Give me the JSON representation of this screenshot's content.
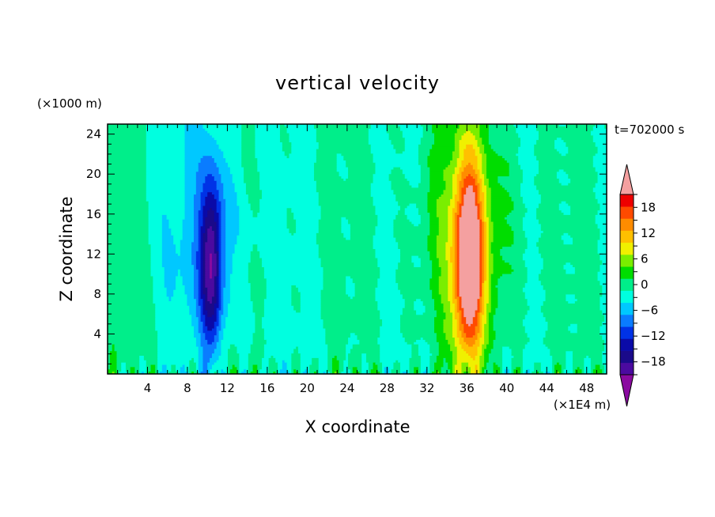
{
  "chart_data": {
    "type": "heatmap",
    "title": "vertical velocity",
    "xlabel": "X coordinate",
    "ylabel": "Z coordinate",
    "x_units": "(×1E4 m)",
    "y_units": "(×1000 m)",
    "time_label": "t=702000 s",
    "xlim": [
      0,
      50
    ],
    "ylim": [
      0,
      25
    ],
    "x_ticks": [
      4,
      8,
      12,
      16,
      20,
      24,
      28,
      32,
      36,
      40,
      44,
      48
    ],
    "y_ticks": [
      4,
      8,
      12,
      16,
      20,
      24
    ],
    "x_tick_labels": [
      "4",
      "8",
      "12",
      "16",
      "20",
      "24",
      "28",
      "32",
      "36",
      "40",
      "44",
      "48"
    ],
    "y_tick_labels": [
      "4",
      "8",
      "12",
      "16",
      "20",
      "24"
    ],
    "colorbar": {
      "levels": [
        -21,
        -18,
        -15,
        -12,
        -9,
        -6,
        -3,
        0,
        3,
        6,
        9,
        12,
        15,
        18,
        21
      ],
      "tick_values": [
        18,
        12,
        6,
        0,
        -6,
        -12,
        -18
      ],
      "tick_labels": [
        "18",
        "12",
        "6",
        "0",
        "−6",
        "−12",
        "−18"
      ],
      "colors": [
        "#4b0aa0",
        "#1a0a8a",
        "#0a0aa8",
        "#0032e6",
        "#0a7cff",
        "#00c8ff",
        "#00ffe0",
        "#00ee8a",
        "#00dd00",
        "#7aee00",
        "#f0f000",
        "#ffc000",
        "#ff8c00",
        "#ff4a00",
        "#ee0000"
      ],
      "under_color": "#8a0aa0",
      "over_color": "#f4a0a0"
    },
    "features": [
      {
        "name": "downdraft",
        "x_center": 10.4,
        "z_center": 11.0,
        "x_halfwidth": 1.1,
        "z_halfwidth": 8.5,
        "peak": -17
      },
      {
        "name": "updraft",
        "x_center": 36.2,
        "z_center": 11.0,
        "x_halfwidth": 1.4,
        "z_halfwidth": 9.5,
        "peak": 24
      }
    ]
  }
}
